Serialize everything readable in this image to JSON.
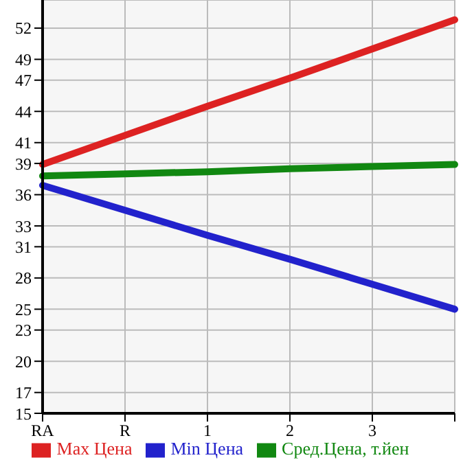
{
  "chart_data": {
    "type": "line",
    "categories": [
      "RA",
      "R",
      "1",
      "2",
      "3",
      null
    ],
    "series": [
      {
        "name": "Max Цена",
        "color": "#dd2222",
        "values": [
          38.9,
          41.7,
          44.5,
          47.2,
          50.0,
          52.8
        ]
      },
      {
        "name": "Min Цена",
        "color": "#2222cc",
        "values": [
          36.9,
          34.5,
          32.1,
          29.8,
          27.4,
          25.0
        ]
      },
      {
        "name": "Сред.Цена, т.йен",
        "color": "#118811",
        "values": [
          37.8,
          38.0,
          38.2,
          38.5,
          38.7,
          38.9
        ]
      }
    ],
    "ylim": [
      15,
      54.7
    ],
    "yticks": [
      15,
      17,
      20,
      23,
      25,
      28,
      31,
      33,
      36,
      39,
      41,
      44,
      47,
      49,
      52
    ],
    "grid": true,
    "legend": "bottom",
    "marker": "none",
    "line_style": "solid"
  }
}
